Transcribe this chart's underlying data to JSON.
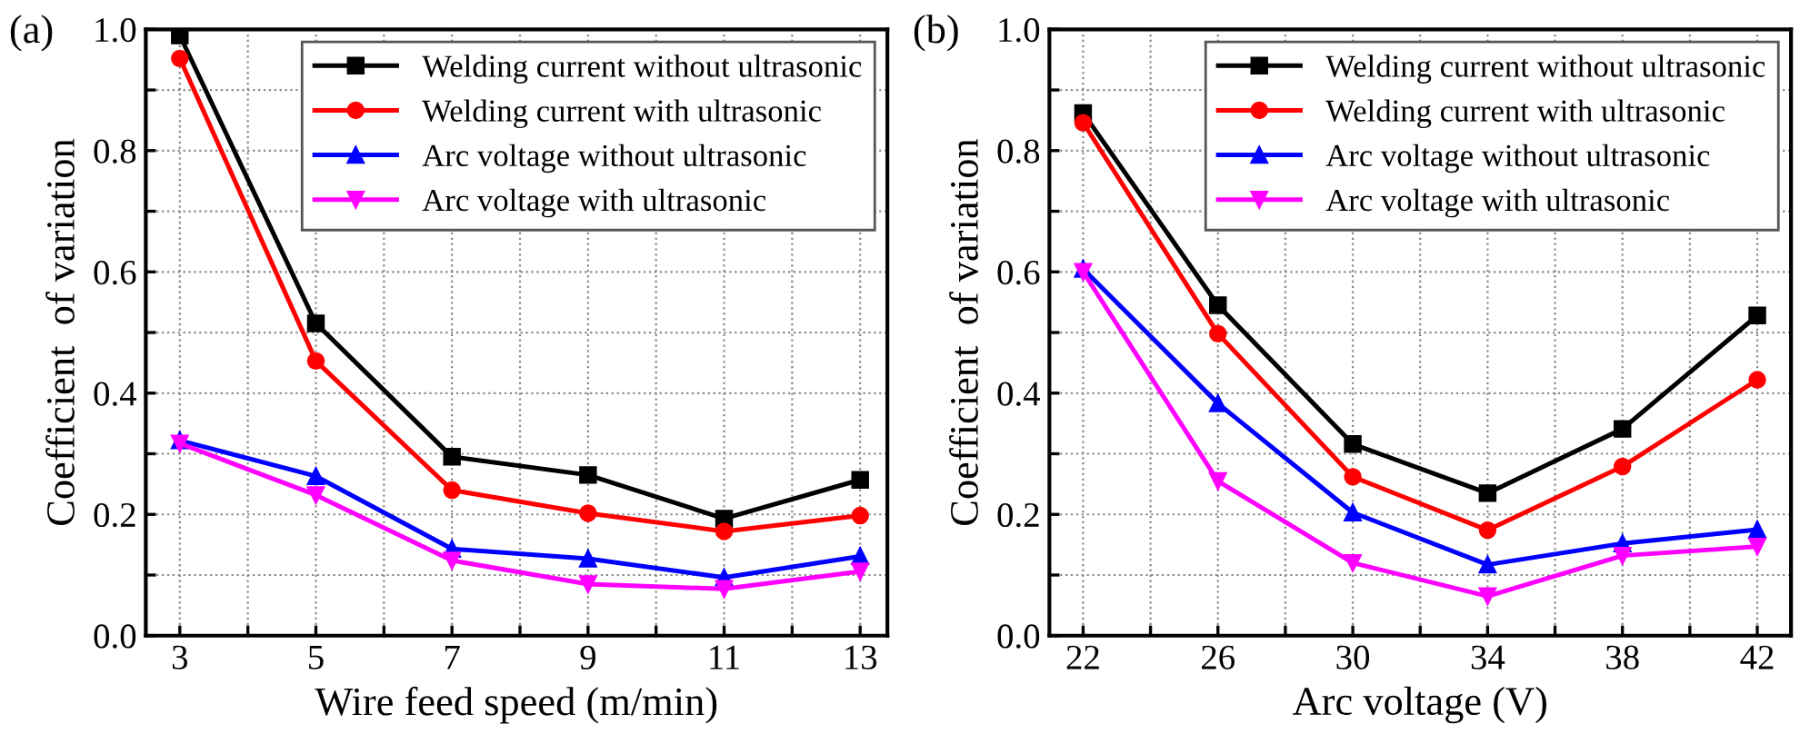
{
  "chart_data": [
    {
      "type": "line",
      "annotations": [
        "(a)"
      ],
      "xlabel": "Wire feed speed (m/min)",
      "ylabel": "Coefficient  of variation",
      "x": [
        3,
        5,
        7,
        9,
        11,
        13
      ],
      "series": [
        {
          "name": "Welding current without ultrasonic",
          "color": "#000000",
          "marker": "square",
          "values": [
            0.99,
            0.515,
            0.295,
            0.265,
            0.193,
            0.257
          ]
        },
        {
          "name": "Welding current with ultrasonic",
          "color": "#ff0000",
          "marker": "circle",
          "values": [
            0.952,
            0.453,
            0.24,
            0.202,
            0.172,
            0.198
          ]
        },
        {
          "name": "Arc voltage without ultrasonic",
          "color": "#0000ff",
          "marker": "triangle",
          "values": [
            0.322,
            0.263,
            0.143,
            0.127,
            0.096,
            0.131
          ]
        },
        {
          "name": "Arc voltage with ultrasonic",
          "color": "#ff00ff",
          "marker": "triangle_down",
          "values": [
            0.317,
            0.232,
            0.124,
            0.085,
            0.077,
            0.106
          ]
        }
      ],
      "xlim": [
        2.5,
        13.4
      ],
      "xticks": [
        3,
        {
          "value": 4,
          "label": null
        },
        5,
        {
          "value": 6,
          "label": null
        },
        7,
        {
          "value": 8,
          "label": null
        },
        9,
        {
          "value": 10,
          "label": null
        },
        11,
        {
          "value": 12,
          "label": null
        },
        13
      ],
      "ylim": [
        0,
        1
      ],
      "yticks": [
        {
          "value": 0,
          "label": "0.0"
        },
        {
          "value": 0.1,
          "label": null
        },
        {
          "value": 0.2,
          "label": "0.2"
        },
        {
          "value": 0.3,
          "label": null
        },
        {
          "value": 0.4,
          "label": "0.4"
        },
        {
          "value": 0.5,
          "label": null
        },
        {
          "value": 0.6,
          "label": "0.6"
        },
        {
          "value": 0.7,
          "label": null
        },
        {
          "value": 0.8,
          "label": "0.8"
        },
        {
          "value": 0.9,
          "label": null
        },
        {
          "value": 1,
          "label": "1.0"
        }
      ],
      "grid": true,
      "legend": "top right",
      "line_style": "solid"
    },
    {
      "type": "line",
      "annotations": [
        "(b)"
      ],
      "xlabel": "Arc voltage (V)",
      "ylabel": "Coefficient  of variation",
      "x": [
        22,
        26,
        30,
        34,
        38,
        42
      ],
      "series": [
        {
          "name": "Welding current without ultrasonic",
          "color": "#000000",
          "marker": "square",
          "values": [
            0.862,
            0.545,
            0.316,
            0.235,
            0.341,
            0.528
          ]
        },
        {
          "name": "Welding current with ultrasonic",
          "color": "#ff0000",
          "marker": "circle",
          "values": [
            0.846,
            0.498,
            0.262,
            0.174,
            0.279,
            0.422
          ]
        },
        {
          "name": "Arc voltage without ultrasonic",
          "color": "#0000ff",
          "marker": "triangle",
          "values": [
            0.605,
            0.383,
            0.203,
            0.117,
            0.152,
            0.175
          ]
        },
        {
          "name": "Arc voltage with ultrasonic",
          "color": "#ff00ff",
          "marker": "triangle_down",
          "values": [
            0.6,
            0.255,
            0.12,
            0.065,
            0.132,
            0.147
          ]
        }
      ],
      "xlim": [
        21,
        43
      ],
      "xticks": [
        22,
        {
          "value": 24,
          "label": null
        },
        26,
        {
          "value": 28,
          "label": null
        },
        30,
        {
          "value": 32,
          "label": null
        },
        34,
        {
          "value": 36,
          "label": null
        },
        38,
        {
          "value": 40,
          "label": null
        },
        42
      ],
      "ylim": [
        0,
        1
      ],
      "yticks": [
        {
          "value": 0,
          "label": "0.0"
        },
        {
          "value": 0.1,
          "label": null
        },
        {
          "value": 0.2,
          "label": "0.2"
        },
        {
          "value": 0.3,
          "label": null
        },
        {
          "value": 0.4,
          "label": "0.4"
        },
        {
          "value": 0.5,
          "label": null
        },
        {
          "value": 0.6,
          "label": "0.6"
        },
        {
          "value": 0.7,
          "label": null
        },
        {
          "value": 0.8,
          "label": "0.8"
        },
        {
          "value": 0.9,
          "label": null
        },
        {
          "value": 1,
          "label": "1.0"
        }
      ],
      "grid": true,
      "legend": "top right",
      "line_style": "solid"
    }
  ]
}
